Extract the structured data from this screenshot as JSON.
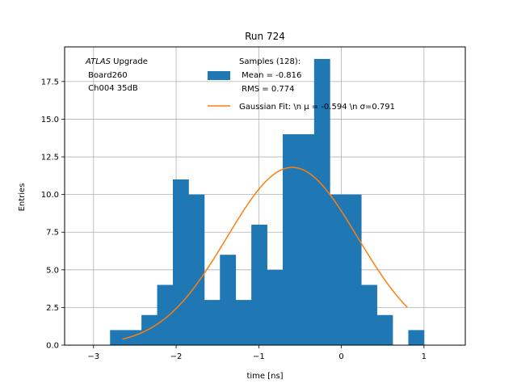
{
  "chart_data": {
    "type": "bar",
    "title": "Run 724",
    "xlabel": "time [ns]",
    "ylabel": "Entries",
    "xlim": [
      -3.35,
      1.5
    ],
    "ylim": [
      0,
      19.8
    ],
    "grid": true,
    "xticks": [
      -3,
      -2,
      -1,
      0,
      1
    ],
    "xtick_labels": [
      "−3",
      "−2",
      "−1",
      "0",
      "1"
    ],
    "yticks": [
      0,
      2.5,
      5.0,
      7.5,
      10.0,
      12.5,
      15.0,
      17.5
    ],
    "ytick_labels": [
      "0.0",
      "2.5",
      "5.0",
      "7.5",
      "10.0",
      "12.5",
      "15.0",
      "17.5"
    ],
    "bin_width": 0.19,
    "bin_edges": [
      -2.8,
      -2.61,
      -2.42,
      -2.23,
      -2.04,
      -1.85,
      -1.66,
      -1.47,
      -1.28,
      -1.09,
      -0.9,
      -0.71,
      -0.52,
      -0.33,
      -0.14,
      0.05,
      0.24,
      0.43,
      0.62,
      0.81,
      1.0,
      1.19
    ],
    "counts": [
      1,
      1,
      2,
      4,
      11,
      10,
      3,
      6,
      3,
      8,
      5,
      14,
      14,
      19,
      10,
      10,
      4,
      2,
      0,
      1,
      0
    ],
    "fit": {
      "label": "Gaussian Fit: \\n μ = -0.594 \\n σ=0.791",
      "mu": -0.594,
      "sigma": 0.791,
      "amplitude": 11.8,
      "x_range": [
        -2.65,
        0.8
      ]
    },
    "legend": {
      "placement": "top-center",
      "samples_lines": [
        "Samples (128):",
        " Mean = -0.816",
        " RMS = 0.774"
      ],
      "fit_label": "Gaussian Fit: \\n μ = -0.594 \\n σ=0.791"
    },
    "annotation_lines": [
      "ATLAS Upgrade",
      " Board260",
      " Ch004 35dB"
    ],
    "colors": {
      "bars": "#1f77b4",
      "fit": "#ff7f0e",
      "grid": "#b0b0b0"
    }
  }
}
